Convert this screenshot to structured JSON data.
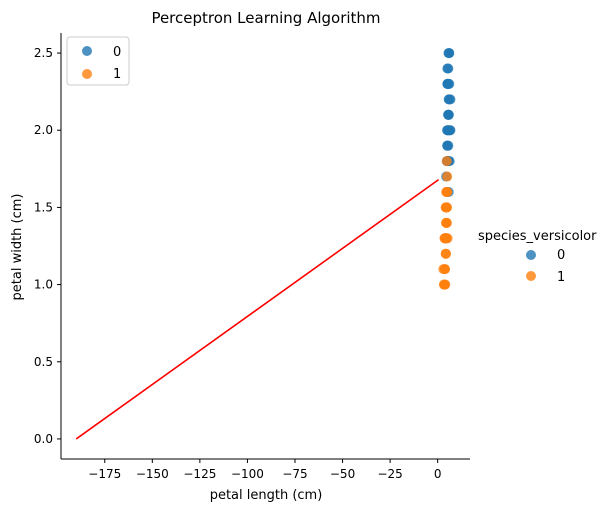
{
  "chart_data": {
    "type": "scatter",
    "title": "Perceptron Learning Algorithm",
    "xlabel": "petal length (cm)",
    "ylabel": "petal width (cm)",
    "xlim": [
      -198,
      17
    ],
    "ylim": [
      -0.13,
      2.63
    ],
    "xticks": [
      -175,
      -150,
      -125,
      -100,
      -75,
      -50,
      -25,
      0
    ],
    "xtick_labels": [
      "−175",
      "−150",
      "−125",
      "−100",
      "−75",
      "−50",
      "−25",
      "0"
    ],
    "yticks": [
      0.0,
      0.5,
      1.0,
      1.5,
      2.0,
      2.5
    ],
    "ytick_labels": [
      "0.0",
      "0.5",
      "1.0",
      "1.5",
      "2.0",
      "2.5"
    ],
    "grid": false,
    "legend_placement": "top-left",
    "outer_legend_title": "species_versicolor",
    "outer_legend_placement": "right",
    "series": [
      {
        "name": "0",
        "color": "#1f77b4",
        "points": [
          [
            6.0,
            2.5
          ],
          [
            6.1,
            2.5
          ],
          [
            5.7,
            2.5
          ],
          [
            5.6,
            2.4
          ],
          [
            5.1,
            2.4
          ],
          [
            5.5,
            2.3
          ],
          [
            5.1,
            2.3
          ],
          [
            6.1,
            2.3
          ],
          [
            5.4,
            2.3
          ],
          [
            5.3,
            2.3
          ],
          [
            5.2,
            2.3
          ],
          [
            6.1,
            2.2
          ],
          [
            6.7,
            2.2
          ],
          [
            5.8,
            2.2
          ],
          [
            5.6,
            2.1
          ],
          [
            5.9,
            2.1
          ],
          [
            5.7,
            2.1
          ],
          [
            5.5,
            2.1
          ],
          [
            5.0,
            2.0
          ],
          [
            5.5,
            2.0
          ],
          [
            5.8,
            2.0
          ],
          [
            6.7,
            2.0
          ],
          [
            5.1,
            2.0
          ],
          [
            6.4,
            2.0
          ],
          [
            5.6,
            1.9
          ],
          [
            5.1,
            1.9
          ],
          [
            5.0,
            1.9
          ],
          [
            5.1,
            1.8
          ],
          [
            5.5,
            1.8
          ],
          [
            6.3,
            1.8
          ],
          [
            4.8,
            1.8
          ],
          [
            4.9,
            1.8
          ],
          [
            5.8,
            1.8
          ],
          [
            4.5,
            1.7
          ],
          [
            5.8,
            1.6
          ]
        ]
      },
      {
        "name": "1",
        "color": "#ff7f0e",
        "points": [
          [
            4.8,
            1.8
          ],
          [
            5.0,
            1.7
          ],
          [
            4.5,
            1.6
          ],
          [
            4.7,
            1.6
          ],
          [
            5.1,
            1.6
          ],
          [
            4.5,
            1.5
          ],
          [
            4.9,
            1.5
          ],
          [
            4.6,
            1.5
          ],
          [
            4.7,
            1.5
          ],
          [
            4.2,
            1.5
          ],
          [
            4.7,
            1.4
          ],
          [
            4.6,
            1.4
          ],
          [
            4.4,
            1.4
          ],
          [
            4.8,
            1.4
          ],
          [
            4.0,
            1.3
          ],
          [
            4.5,
            1.3
          ],
          [
            4.4,
            1.3
          ],
          [
            4.1,
            1.3
          ],
          [
            3.9,
            1.3
          ],
          [
            4.3,
            1.3
          ],
          [
            3.6,
            1.3
          ],
          [
            5.2,
            1.3
          ],
          [
            4.4,
            1.2
          ],
          [
            4.2,
            1.2
          ],
          [
            3.8,
            1.1
          ],
          [
            3.9,
            1.1
          ],
          [
            3.0,
            1.1
          ],
          [
            3.5,
            1.0
          ],
          [
            3.3,
            1.0
          ],
          [
            4.0,
            1.0
          ],
          [
            3.7,
            1.0
          ]
        ]
      }
    ],
    "decision_line": {
      "color": "#ff0000",
      "points": [
        [
          -190,
          0.0
        ],
        [
          0.5,
          1.68
        ]
      ]
    }
  }
}
